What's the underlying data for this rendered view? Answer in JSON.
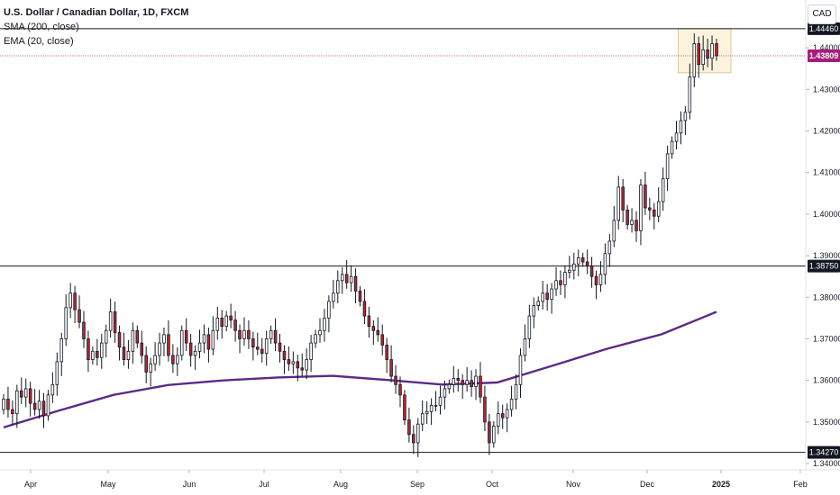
{
  "header": {
    "title": "U.S. Dollar / Canadian Dollar, 1D, FXCM",
    "indicator_sma": "SMA (200, close)",
    "indicator_ema": "EMA (20, close)",
    "currency_button": "CAD"
  },
  "colors": {
    "up": "#ffffff",
    "down": "#b22833",
    "wick": "#131722",
    "sma": "#5b2a86",
    "level_line": "#131722",
    "current_line": "#c27ba0",
    "current_badge": "#a61c7a",
    "level_badge": "#131722",
    "highlight_fill": "#fbf3dc",
    "highlight_stroke": "#d9c9a0"
  },
  "chart_data": {
    "type": "candlestick",
    "title": "U.S. Dollar / Canadian Dollar, 1D, FXCM",
    "x_ticks": [
      "Apr",
      "May",
      "Jun",
      "Jul",
      "Aug",
      "Sep",
      "Oct",
      "Nov",
      "Dec",
      "2025",
      "Feb"
    ],
    "y_ticks": [
      "1.34000",
      "1.35000",
      "1.36000",
      "1.37000",
      "1.38000",
      "1.39000",
      "1.40000",
      "1.41000",
      "1.42000",
      "1.43000",
      "1.44000"
    ],
    "ylim": [
      1.3385,
      1.4515
    ],
    "horizontal_levels": [
      {
        "label": "1.44460",
        "value": 1.4446
      },
      {
        "label": "1.38750",
        "value": 1.3875
      },
      {
        "label": "1.34270",
        "value": 1.3427
      }
    ],
    "current_price": {
      "label": "1.43809",
      "value": 1.43809
    },
    "sma_200": [
      1.3487,
      1.3527,
      1.3565,
      1.3589,
      1.36,
      1.3607,
      1.3611,
      1.3601,
      1.359,
      1.3595,
      1.3635,
      1.3676,
      1.3711,
      1.3765
    ],
    "candles_close": [
      1.3555,
      1.353,
      1.352,
      1.3575,
      1.356,
      1.358,
      1.3545,
      1.353,
      1.355,
      1.3515,
      1.3565,
      1.359,
      1.3645,
      1.37,
      1.3775,
      1.381,
      1.377,
      1.374,
      1.37,
      1.365,
      1.367,
      1.3655,
      1.369,
      1.372,
      1.3765,
      1.3715,
      1.368,
      1.365,
      1.367,
      1.372,
      1.369,
      1.366,
      1.362,
      1.364,
      1.366,
      1.369,
      1.371,
      1.366,
      1.364,
      1.366,
      1.372,
      1.369,
      1.366,
      1.367,
      1.369,
      1.371,
      1.3675,
      1.372,
      1.375,
      1.373,
      1.3755,
      1.3745,
      1.372,
      1.37,
      1.372,
      1.37,
      1.368,
      1.3675,
      1.3665,
      1.37,
      1.372,
      1.369,
      1.367,
      1.365,
      1.364,
      1.3645,
      1.363,
      1.3625,
      1.365,
      1.369,
      1.371,
      1.372,
      1.375,
      1.379,
      1.381,
      1.384,
      1.3855,
      1.3835,
      1.385,
      1.3815,
      1.379,
      1.3755,
      1.373,
      1.372,
      1.371,
      1.3685,
      1.365,
      1.361,
      1.359,
      1.3565,
      1.3505,
      1.347,
      1.345,
      1.3495,
      1.352,
      1.3525,
      1.354,
      1.354,
      1.356,
      1.358,
      1.359,
      1.3605,
      1.36,
      1.359,
      1.36,
      1.3585,
      1.361,
      1.356,
      1.35,
      1.345,
      1.349,
      1.352,
      1.351,
      1.353,
      1.3555,
      1.359,
      1.366,
      1.37,
      1.3755,
      1.378,
      1.379,
      1.381,
      1.3795,
      1.382,
      1.384,
      1.383,
      1.386,
      1.3865,
      1.388,
      1.3895,
      1.3885,
      1.3875,
      1.385,
      1.383,
      1.3855,
      1.3905,
      1.3935,
      1.3985,
      1.4065,
      1.401,
      1.3975,
      1.3985,
      1.396,
      1.407,
      1.4015,
      1.401,
      1.3995,
      1.403,
      1.4085,
      1.4145,
      1.4175,
      1.4195,
      1.4225,
      1.4245,
      1.433,
      1.441,
      1.436,
      1.4395,
      1.4375,
      1.441,
      1.4381
    ]
  }
}
